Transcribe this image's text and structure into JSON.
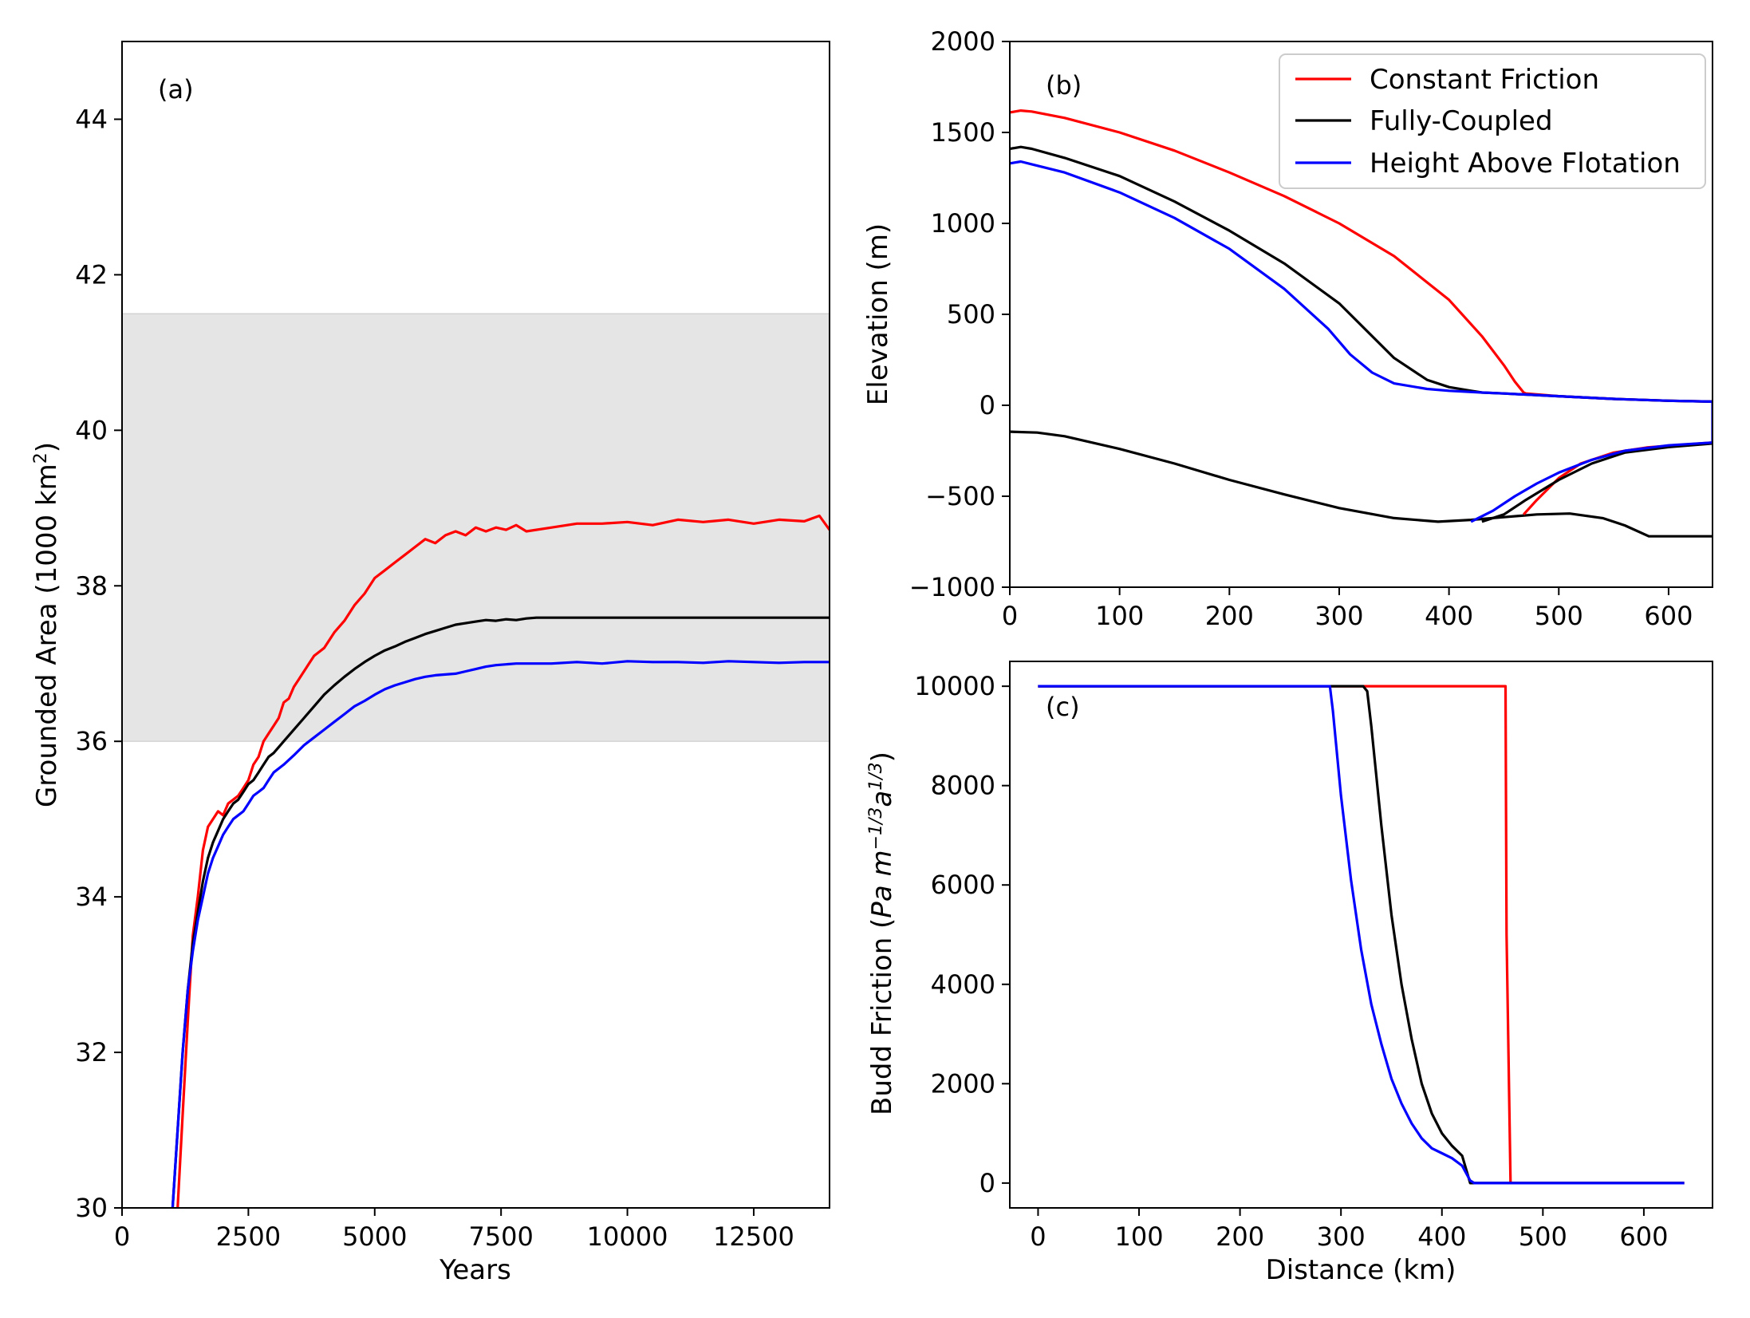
{
  "chart_data": [
    {
      "id": "a",
      "type": "line",
      "panel_label": "(a)",
      "xlabel": "Years",
      "ylabel": "Grounded Area (1000 km²)",
      "ylabel_main": "Grounded Area (1000 km",
      "ylabel_sup": "2",
      "ylabel_end": ")",
      "xlim": [
        0,
        14000
      ],
      "ylim": [
        30,
        45
      ],
      "xticks": [
        0,
        2500,
        5000,
        7500,
        10000,
        12500
      ],
      "xtick_labels": [
        "0",
        "2500",
        "5000",
        "7500",
        "10000",
        "12500"
      ],
      "yticks": [
        30,
        32,
        34,
        36,
        38,
        40,
        42,
        44
      ],
      "ytick_labels": [
        "30",
        "32",
        "34",
        "36",
        "38",
        "40",
        "42",
        "44"
      ],
      "shaded_band": {
        "y0": 36.0,
        "y1": 41.5,
        "color": "#e5e5e5"
      },
      "grid": false,
      "series": [
        {
          "key": "constant",
          "color": "#ff0000",
          "x": [
            1100,
            1200,
            1300,
            1400,
            1500,
            1600,
            1700,
            1800,
            1900,
            2000,
            2100,
            2200,
            2300,
            2400,
            2500,
            2600,
            2700,
            2800,
            2900,
            3000,
            3100,
            3200,
            3300,
            3400,
            3500,
            3600,
            3700,
            3800,
            3900,
            4000,
            4200,
            4400,
            4600,
            4800,
            5000,
            5200,
            5400,
            5600,
            5800,
            6000,
            6200,
            6400,
            6600,
            6800,
            7000,
            7200,
            7400,
            7600,
            7800,
            8000,
            8500,
            9000,
            9500,
            10000,
            10500,
            11000,
            11500,
            12000,
            12500,
            13000,
            13500,
            13800,
            14000
          ],
          "y": [
            30.0,
            31.2,
            32.4,
            33.5,
            34.0,
            34.6,
            34.9,
            35.0,
            35.1,
            35.05,
            35.2,
            35.25,
            35.3,
            35.4,
            35.5,
            35.7,
            35.8,
            36.0,
            36.1,
            36.2,
            36.3,
            36.5,
            36.55,
            36.7,
            36.8,
            36.9,
            37.0,
            37.1,
            37.15,
            37.2,
            37.4,
            37.55,
            37.75,
            37.9,
            38.1,
            38.2,
            38.3,
            38.4,
            38.5,
            38.6,
            38.55,
            38.65,
            38.7,
            38.65,
            38.75,
            38.7,
            38.75,
            38.72,
            38.78,
            38.7,
            38.75,
            38.8,
            38.8,
            38.82,
            38.78,
            38.85,
            38.82,
            38.85,
            38.8,
            38.85,
            38.83,
            38.9,
            38.72
          ]
        },
        {
          "key": "coupled",
          "color": "#000000",
          "x": [
            1000,
            1100,
            1200,
            1300,
            1400,
            1500,
            1600,
            1700,
            1800,
            1900,
            2000,
            2100,
            2200,
            2300,
            2400,
            2500,
            2600,
            2700,
            2800,
            2900,
            3000,
            3200,
            3400,
            3600,
            3800,
            4000,
            4200,
            4400,
            4600,
            4800,
            5000,
            5200,
            5400,
            5600,
            5800,
            6000,
            6200,
            6400,
            6600,
            6800,
            7000,
            7200,
            7400,
            7600,
            7800,
            8000,
            8200,
            9000,
            10000,
            11000,
            12000,
            13000,
            14000
          ],
          "y": [
            30.0,
            31.0,
            32.0,
            32.8,
            33.4,
            33.8,
            34.2,
            34.5,
            34.7,
            34.85,
            35.0,
            35.1,
            35.2,
            35.25,
            35.35,
            35.45,
            35.5,
            35.6,
            35.7,
            35.8,
            35.85,
            36.0,
            36.15,
            36.3,
            36.45,
            36.6,
            36.72,
            36.83,
            36.93,
            37.02,
            37.1,
            37.17,
            37.22,
            37.28,
            37.33,
            37.38,
            37.42,
            37.46,
            37.5,
            37.52,
            37.54,
            37.56,
            37.55,
            37.57,
            37.56,
            37.58,
            37.59,
            37.59,
            37.59,
            37.59,
            37.59,
            37.59,
            37.59
          ]
        },
        {
          "key": "haf",
          "color": "#0000ff",
          "x": [
            1000,
            1100,
            1200,
            1300,
            1400,
            1500,
            1600,
            1700,
            1800,
            1900,
            2000,
            2100,
            2200,
            2300,
            2400,
            2500,
            2600,
            2700,
            2800,
            2900,
            3000,
            3200,
            3400,
            3600,
            3800,
            4000,
            4200,
            4400,
            4600,
            4800,
            5000,
            5200,
            5400,
            5600,
            5800,
            6000,
            6200,
            6400,
            6600,
            6800,
            7000,
            7200,
            7400,
            7600,
            7800,
            8000,
            8500,
            9000,
            9500,
            10000,
            10500,
            11000,
            11500,
            12000,
            12500,
            13000,
            13500,
            14000
          ],
          "y": [
            30.0,
            31.0,
            32.0,
            32.8,
            33.3,
            33.7,
            34.0,
            34.3,
            34.5,
            34.65,
            34.8,
            34.9,
            35.0,
            35.05,
            35.1,
            35.2,
            35.3,
            35.35,
            35.4,
            35.5,
            35.6,
            35.7,
            35.82,
            35.95,
            36.05,
            36.15,
            36.25,
            36.35,
            36.45,
            36.52,
            36.6,
            36.67,
            36.72,
            36.76,
            36.8,
            36.83,
            36.85,
            36.86,
            36.87,
            36.9,
            36.93,
            36.96,
            36.98,
            36.99,
            37.0,
            37.0,
            37.0,
            37.02,
            37.0,
            37.03,
            37.02,
            37.02,
            37.01,
            37.03,
            37.02,
            37.01,
            37.02,
            37.02
          ]
        }
      ]
    },
    {
      "id": "b",
      "type": "line",
      "panel_label": "(b)",
      "xlabel": "",
      "ylabel": "Elevation (m)",
      "xlim": [
        0,
        640
      ],
      "ylim": [
        -1000,
        2000
      ],
      "xticks": [
        0,
        100,
        200,
        300,
        400,
        500,
        600
      ],
      "xtick_labels": [
        "0",
        "100",
        "200",
        "300",
        "400",
        "500",
        "600"
      ],
      "yticks": [
        -1000,
        -500,
        0,
        500,
        1000,
        1500,
        2000
      ],
      "ytick_labels": [
        "−1000",
        "−500",
        "0",
        "500",
        "1000",
        "1500",
        "2000"
      ],
      "grid": false,
      "legend": {
        "placement": "top-right",
        "entries": [
          {
            "label": "Constant Friction",
            "color": "#ff0000"
          },
          {
            "label": "Fully-Coupled",
            "color": "#000000"
          },
          {
            "label": "Height Above Flotation",
            "color": "#0000ff"
          }
        ]
      },
      "bed": {
        "color": "#000000",
        "x": [
          0,
          25,
          50,
          100,
          150,
          200,
          250,
          300,
          350,
          390,
          420,
          450,
          480,
          510,
          540,
          560,
          582,
          600,
          640
        ],
        "y": [
          -145,
          -150,
          -170,
          -240,
          -320,
          -410,
          -490,
          -565,
          -620,
          -640,
          -630,
          -615,
          -600,
          -595,
          -620,
          -660,
          -720,
          -720,
          -720
        ]
      },
      "series": [
        {
          "key": "constant",
          "color": "#ff0000",
          "surface": {
            "x": [
              0,
              10,
              20,
              50,
              100,
              150,
              200,
              250,
              300,
              350,
              400,
              430,
              450,
              460,
              468,
              470,
              500,
              550,
              600,
              640
            ],
            "y": [
              1610,
              1620,
              1615,
              1580,
              1500,
              1400,
              1280,
              1150,
              1000,
              820,
              580,
              380,
              220,
              130,
              70,
              65,
              50,
              35,
              25,
              20
            ]
          },
          "base": {
            "x": [
              468,
              480,
              500,
              520,
              550,
              580,
              610,
              640
            ],
            "y": [
              -600,
              -520,
              -400,
              -320,
              -260,
              -232,
              -218,
              -205
            ]
          }
        },
        {
          "key": "coupled",
          "color": "#000000",
          "surface": {
            "x": [
              0,
              10,
              20,
              50,
              100,
              150,
              200,
              250,
              300,
              330,
              350,
              380,
              400,
              420,
              430,
              450,
              500,
              550,
              600,
              640
            ],
            "y": [
              1410,
              1420,
              1410,
              1360,
              1260,
              1120,
              960,
              780,
              560,
              380,
              260,
              140,
              100,
              80,
              70,
              65,
              50,
              35,
              25,
              20
            ]
          },
          "base": {
            "x": [
              430,
              450,
              470,
              500,
              530,
              560,
              600,
              640
            ],
            "y": [
              -640,
              -600,
              -520,
              -410,
              -320,
              -260,
              -230,
              -210
            ]
          }
        },
        {
          "key": "haf",
          "color": "#0000ff",
          "surface": {
            "x": [
              0,
              10,
              20,
              50,
              100,
              150,
              200,
              250,
              290,
              310,
              330,
              350,
              380,
              400,
              430,
              450,
              500,
              550,
              600,
              640
            ],
            "y": [
              1330,
              1340,
              1325,
              1280,
              1170,
              1030,
              860,
              640,
              420,
              280,
              180,
              120,
              90,
              80,
              70,
              65,
              50,
              35,
              25,
              20
            ]
          },
          "base": {
            "x": [
              420,
              440,
              460,
              480,
              500,
              530,
              560,
              600,
              640
            ],
            "y": [
              -640,
              -580,
              -500,
              -430,
              -370,
              -300,
              -250,
              -220,
              -205
            ]
          },
          "front": {
            "x": 640,
            "y_top": 20,
            "y_bottom": -205
          }
        }
      ]
    },
    {
      "id": "c",
      "type": "line",
      "panel_label": "(c)",
      "xlabel": "Distance (km)",
      "ylabel": "Budd Friction (Pa m^-1/3 a^1/3)",
      "ylabel_main": "Budd Friction (",
      "ylabel_italic_1": "Pa m",
      "ylabel_sup_1": "−1/3",
      "ylabel_italic_2": "a",
      "ylabel_sup_2": "1/3",
      "ylabel_end": ")",
      "xlim": [
        -28,
        668
      ],
      "ylim": [
        -500,
        10500
      ],
      "xticks": [
        0,
        100,
        200,
        300,
        400,
        500,
        600
      ],
      "xtick_labels": [
        "0",
        "100",
        "200",
        "300",
        "400",
        "500",
        "600"
      ],
      "yticks": [
        0,
        2000,
        4000,
        6000,
        8000,
        10000
      ],
      "ytick_labels": [
        "0",
        "2000",
        "4000",
        "6000",
        "8000",
        "10000"
      ],
      "grid": false,
      "series": [
        {
          "key": "constant",
          "color": "#ff0000",
          "x": [
            0,
            463,
            464,
            468,
            469,
            640
          ],
          "y": [
            10000,
            10000,
            5000,
            0,
            0,
            0
          ]
        },
        {
          "key": "coupled",
          "color": "#000000",
          "x": [
            0,
            322,
            326,
            330,
            340,
            350,
            360,
            370,
            380,
            390,
            400,
            410,
            420,
            428,
            432,
            640
          ],
          "y": [
            10000,
            10000,
            9900,
            9200,
            7200,
            5400,
            4000,
            2900,
            2000,
            1400,
            1000,
            750,
            550,
            0,
            0,
            0
          ]
        },
        {
          "key": "haf",
          "color": "#0000ff",
          "x": [
            0,
            289,
            292,
            300,
            310,
            320,
            330,
            340,
            350,
            360,
            370,
            380,
            390,
            400,
            410,
            420,
            428,
            432,
            640
          ],
          "y": [
            10000,
            10000,
            9500,
            7800,
            6100,
            4700,
            3600,
            2800,
            2100,
            1600,
            1200,
            900,
            700,
            600,
            500,
            350,
            50,
            0,
            0
          ]
        }
      ]
    }
  ]
}
